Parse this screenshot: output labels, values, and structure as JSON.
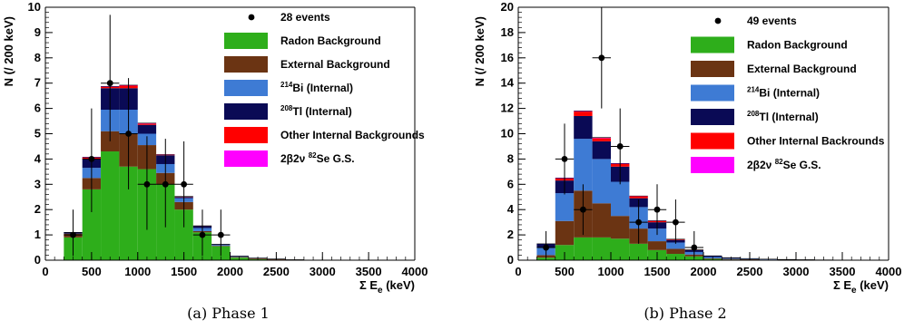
{
  "chart_data": [
    {
      "type": "bar",
      "subtype": "stacked-histogram",
      "caption": "(a) Phase 1",
      "xlabel": "Σ E",
      "xlabel_sub": "e",
      "xlabel_unit": "(keV)",
      "ylabel": "N (/ 200 keV)",
      "xlim": [
        0,
        4000
      ],
      "ylim": [
        0,
        10
      ],
      "xticks": [
        0,
        500,
        1000,
        1500,
        2000,
        2500,
        3000,
        3500,
        4000
      ],
      "yticks": [
        0,
        1,
        2,
        3,
        4,
        5,
        6,
        7,
        8,
        9,
        10
      ],
      "bin_width": 200,
      "bins": [
        200,
        400,
        600,
        800,
        1000,
        1200,
        1400,
        1600,
        1800,
        2000,
        2200,
        2400,
        2600
      ],
      "legend_placement": "top-right",
      "series": [
        {
          "name": "Radon Background",
          "color": "#2eae1b",
          "values": [
            0.9,
            2.8,
            4.3,
            3.7,
            3.6,
            3.0,
            2.0,
            1.1,
            0.55,
            0.1,
            0.04,
            0.02,
            0.01
          ]
        },
        {
          "name": "External Background",
          "color": "#6b3413",
          "values": [
            0.15,
            0.45,
            0.8,
            1.3,
            0.95,
            0.45,
            0.3,
            0.05,
            0.02,
            0.03,
            0.03,
            0.02,
            0.01
          ]
        },
        {
          "name": "Bi (Internal)",
          "sup": "214",
          "color": "#3e7bd4",
          "values": [
            0.0,
            0.4,
            0.85,
            0.95,
            0.45,
            0.35,
            0.15,
            0.12,
            0.03,
            0.02,
            0.01,
            0.01,
            0.0
          ]
        },
        {
          "name": "Tl (Internal)",
          "sup": "208",
          "color": "#0a0a55",
          "values": [
            0.05,
            0.35,
            0.85,
            0.85,
            0.35,
            0.35,
            0.05,
            0.08,
            0.03,
            0.02,
            0.01,
            0.0,
            0.0
          ]
        },
        {
          "name": "Other Internal Backgrounds",
          "color": "#ff0000",
          "values": [
            0.0,
            0.05,
            0.05,
            0.1,
            0.05,
            0.02,
            0.01,
            0.01,
            0.0,
            0.0,
            0.0,
            0.0,
            0.0
          ]
        },
        {
          "name": "2β2ν Se G.S.",
          "sup": "82",
          "color": "#ff00ff",
          "values": [
            0.0,
            0.02,
            0.02,
            0.02,
            0.02,
            0.01,
            0.01,
            0.0,
            0.0,
            0.0,
            0.0,
            0.0,
            0.0
          ]
        }
      ],
      "events": {
        "label": "28 events",
        "points": [
          {
            "x": 300,
            "y": 1,
            "lo": 0.17,
            "hi": 2.0
          },
          {
            "x": 500,
            "y": 4,
            "lo": 1.9,
            "hi": 6.0
          },
          {
            "x": 700,
            "y": 7,
            "lo": 4.7,
            "hi": 9.7
          },
          {
            "x": 900,
            "y": 5,
            "lo": 2.8,
            "hi": 7.2
          },
          {
            "x": 1100,
            "y": 3,
            "lo": 1.2,
            "hi": 4.9
          },
          {
            "x": 1300,
            "y": 3,
            "lo": 1.3,
            "hi": 4.8
          },
          {
            "x": 1500,
            "y": 3,
            "lo": 1.3,
            "hi": 4.7
          },
          {
            "x": 1700,
            "y": 1,
            "lo": 0.17,
            "hi": 2.0
          },
          {
            "x": 1900,
            "y": 1,
            "lo": 0.17,
            "hi": 2.0
          }
        ]
      }
    },
    {
      "type": "bar",
      "subtype": "stacked-histogram",
      "caption": "(b) Phase 2",
      "xlabel": "Σ E",
      "xlabel_sub": "e",
      "xlabel_unit": "(keV)",
      "ylabel": "N (/ 200 keV)",
      "xlim": [
        0,
        4000
      ],
      "ylim": [
        0,
        20
      ],
      "xticks": [
        0,
        500,
        1000,
        1500,
        2000,
        2500,
        3000,
        3500,
        4000
      ],
      "yticks": [
        0,
        2,
        4,
        6,
        8,
        10,
        12,
        14,
        16,
        18,
        20
      ],
      "bin_width": 200,
      "bins": [
        200,
        400,
        600,
        800,
        1000,
        1200,
        1400,
        1600,
        1800,
        2000,
        2200,
        2400,
        2600,
        2800,
        3000,
        3200
      ],
      "legend_placement": "top-right",
      "series": [
        {
          "name": "Radon Background",
          "color": "#2eae1b",
          "values": [
            0.2,
            1.2,
            1.8,
            1.8,
            1.7,
            1.3,
            0.8,
            0.5,
            0.3,
            0.1,
            0.05,
            0.03,
            0.02,
            0.01,
            0.01,
            0.0
          ]
        },
        {
          "name": "External Background",
          "color": "#6b3413",
          "values": [
            0.2,
            1.9,
            3.7,
            2.7,
            1.8,
            1.2,
            0.7,
            0.4,
            0.15,
            0.05,
            0.05,
            0.04,
            0.03,
            0.02,
            0.01,
            0.01
          ]
        },
        {
          "name": "Bi (Internal)",
          "sup": "214",
          "color": "#3e7bd4",
          "values": [
            0.6,
            2.2,
            4.1,
            3.5,
            2.7,
            1.7,
            1.0,
            0.5,
            0.2,
            0.1,
            0.05,
            0.03,
            0.02,
            0.02,
            0.01,
            0.01
          ]
        },
        {
          "name": "Tl (Internal)",
          "sup": "208",
          "color": "#0a0a55",
          "values": [
            0.3,
            1.0,
            1.8,
            1.4,
            1.2,
            0.7,
            0.5,
            0.2,
            0.15,
            0.1,
            0.05,
            0.03,
            0.02,
            0.01,
            0.01,
            0.0
          ]
        },
        {
          "name": "Other Internal Backrounds",
          "color": "#ff0000",
          "values": [
            0.0,
            0.15,
            0.35,
            0.25,
            0.2,
            0.15,
            0.1,
            0.05,
            0.02,
            0.0,
            0.0,
            0.0,
            0.0,
            0.0,
            0.0,
            0.0
          ]
        },
        {
          "name": "2β2ν Se G.S.",
          "sup": "82",
          "color": "#ff00ff",
          "values": [
            0.0,
            0.05,
            0.05,
            0.05,
            0.05,
            0.03,
            0.02,
            0.01,
            0.0,
            0.0,
            0.0,
            0.0,
            0.0,
            0.0,
            0.0,
            0.0
          ]
        }
      ],
      "events": {
        "label": "49 events",
        "points": [
          {
            "x": 300,
            "y": 1,
            "lo": 0.17,
            "hi": 2.3
          },
          {
            "x": 500,
            "y": 8,
            "lo": 5.2,
            "hi": 10.8
          },
          {
            "x": 700,
            "y": 4,
            "lo": 2.0,
            "hi": 6.0
          },
          {
            "x": 900,
            "y": 16,
            "lo": 12.0,
            "hi": 20.0
          },
          {
            "x": 1100,
            "y": 9,
            "lo": 6.0,
            "hi": 12.0
          },
          {
            "x": 1300,
            "y": 3,
            "lo": 1.3,
            "hi": 4.8
          },
          {
            "x": 1500,
            "y": 4,
            "lo": 2.0,
            "hi": 6.0
          },
          {
            "x": 1700,
            "y": 3,
            "lo": 1.3,
            "hi": 4.8
          },
          {
            "x": 1900,
            "y": 1,
            "lo": 0.17,
            "hi": 2.3
          }
        ]
      }
    }
  ]
}
